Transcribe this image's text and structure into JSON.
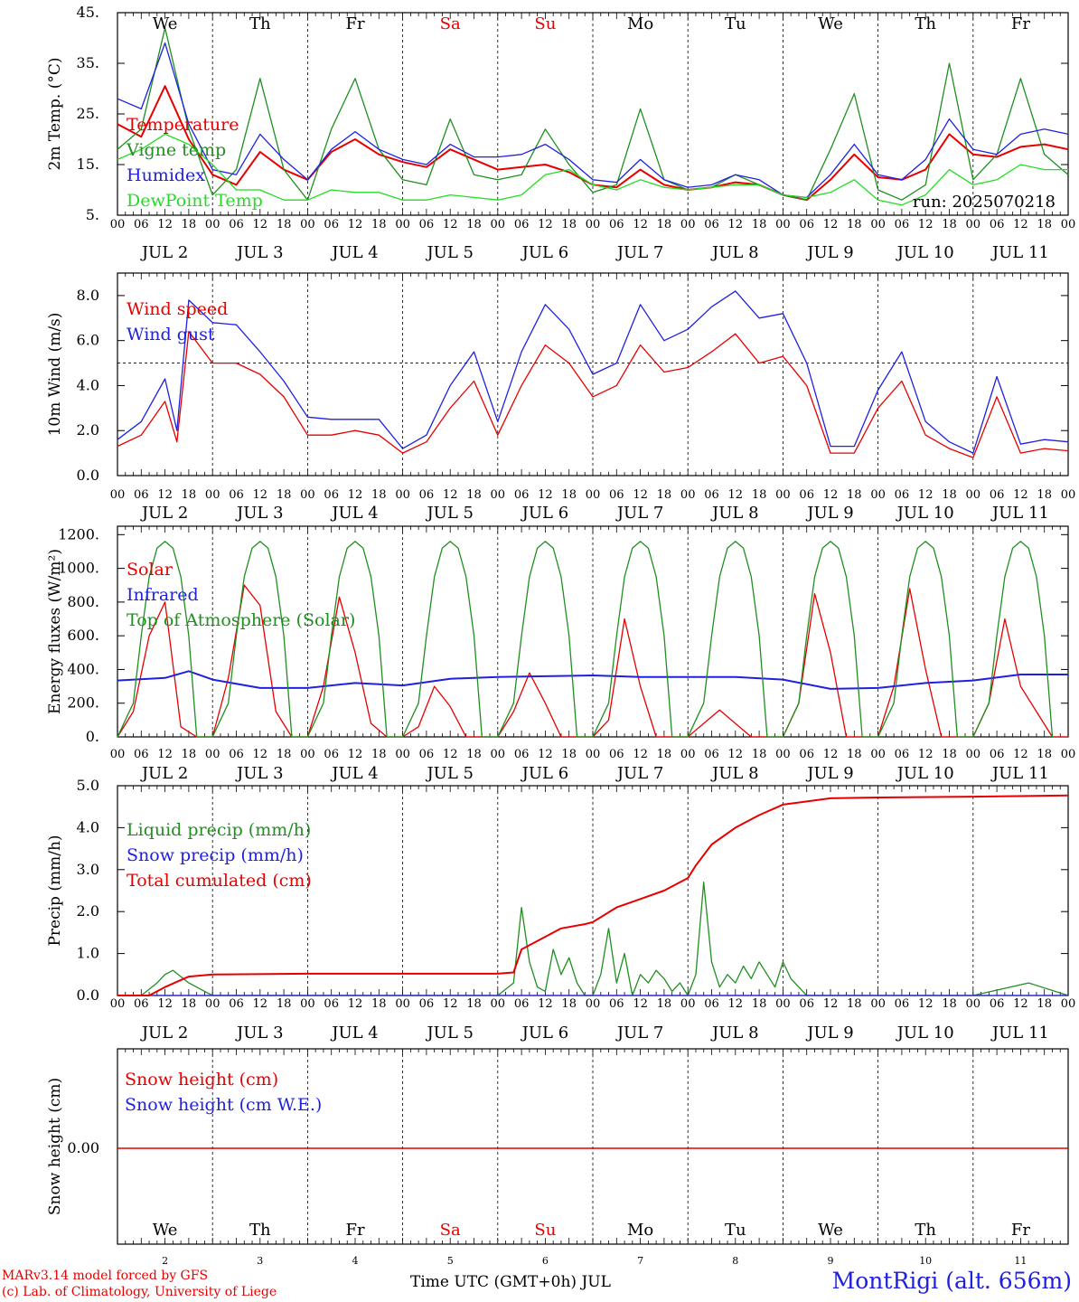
{
  "colors": {
    "red": "#e60000",
    "green": "#1f8f1f",
    "blue": "#2020e0",
    "lightgreen": "#22dd22",
    "black": "#000000"
  },
  "x_axis": {
    "hour_labels": [
      "00",
      "06",
      "12",
      "18"
    ],
    "end_label": "00",
    "date_labels": [
      "JUL  2",
      "JUL  3",
      "JUL  4",
      "JUL  5",
      "JUL  6",
      "JUL  7",
      "JUL  8",
      "JUL  9",
      "JUL 10",
      "JUL 11"
    ],
    "weekdays": [
      "We",
      "Th",
      "Fr",
      "Sa",
      "Su",
      "Mo",
      "Tu",
      "We",
      "Th",
      "Fr"
    ],
    "weekend_flags": [
      false,
      false,
      false,
      true,
      true,
      false,
      false,
      false,
      false,
      false
    ],
    "day_numbers": [
      "2",
      "3",
      "4",
      "5",
      "6",
      "7",
      "8",
      "9",
      "10",
      "11"
    ],
    "title": "Time UTC (GMT+0h) JUL"
  },
  "run_label": "run: 2025070218",
  "footer": {
    "model": "MARv3.14 model forced by GFS",
    "copyright": "(c) Lab. of Climatology, University of Liege",
    "station": "MontRigi (alt. 656m)"
  },
  "chart_data": [
    {
      "type": "line",
      "ylabel": "2m Temp. (°C)",
      "ylim": [
        5,
        45
      ],
      "yticks": [
        5,
        15,
        25,
        35,
        45
      ],
      "ytick_labels": [
        "5.",
        "15.",
        "25.",
        "35.",
        "45."
      ],
      "x_unit": "hours since JUL 2 00 UTC",
      "series": [
        {
          "name": "Temperature",
          "color": "red",
          "x": [
            0,
            6,
            12,
            18,
            24,
            30,
            36,
            42,
            48,
            54,
            60,
            66,
            72,
            78,
            84,
            90,
            96,
            102,
            108,
            114,
            120,
            126,
            132,
            138,
            144,
            150,
            156,
            162,
            168,
            174,
            180,
            186,
            192,
            198,
            204,
            210,
            216,
            222,
            228,
            234,
            240
          ],
          "y": [
            23,
            20.5,
            30.5,
            20,
            13,
            11,
            17.5,
            14,
            12,
            17.5,
            20,
            17,
            15.5,
            14.5,
            18,
            16,
            14,
            14.5,
            15,
            13.5,
            11,
            10.5,
            14,
            11,
            10,
            10.5,
            11.5,
            11,
            9,
            8,
            12,
            17,
            12.5,
            12,
            14,
            21,
            17,
            16.5,
            18.5,
            19,
            18
          ]
        },
        {
          "name": "Vigne temp",
          "color": "green",
          "x": [
            0,
            6,
            12,
            18,
            24,
            30,
            36,
            42,
            48,
            54,
            60,
            66,
            72,
            78,
            84,
            90,
            96,
            102,
            108,
            114,
            120,
            126,
            132,
            138,
            144,
            150,
            156,
            162,
            168,
            174,
            180,
            186,
            192,
            198,
            204,
            210,
            216,
            222,
            228,
            234,
            240
          ],
          "y": [
            18,
            22,
            42,
            22,
            9,
            14,
            32,
            14,
            8,
            22,
            32,
            18,
            12,
            11,
            24,
            13,
            12,
            13,
            22,
            15,
            9.5,
            11,
            26,
            12,
            10,
            10.5,
            13,
            11,
            9,
            8,
            18,
            29,
            10,
            8,
            11,
            35,
            12,
            17,
            32,
            17,
            13
          ]
        },
        {
          "name": "Humidex",
          "color": "blue",
          "x": [
            0,
            6,
            12,
            18,
            24,
            30,
            36,
            42,
            48,
            54,
            60,
            66,
            72,
            78,
            84,
            90,
            96,
            102,
            108,
            114,
            120,
            126,
            132,
            138,
            144,
            150,
            156,
            162,
            168,
            174,
            180,
            186,
            192,
            198,
            204,
            210,
            216,
            222,
            228,
            234,
            240
          ],
          "y": [
            28,
            26,
            39,
            23,
            14,
            13,
            21,
            16,
            12,
            18,
            21.5,
            18,
            16,
            15,
            19,
            16.5,
            16.5,
            17,
            19,
            16,
            12,
            11.5,
            16,
            12,
            10.5,
            11,
            13,
            12,
            9,
            8.5,
            13,
            19,
            13,
            12,
            16,
            24,
            18,
            17,
            21,
            22,
            21
          ]
        },
        {
          "name": "DewPoint Temp",
          "color": "lightgreen",
          "x": [
            0,
            6,
            12,
            18,
            24,
            30,
            36,
            42,
            48,
            54,
            60,
            66,
            72,
            78,
            84,
            90,
            96,
            102,
            108,
            114,
            120,
            126,
            132,
            138,
            144,
            150,
            156,
            162,
            168,
            174,
            180,
            186,
            192,
            198,
            204,
            210,
            216,
            222,
            228,
            234,
            240
          ],
          "y": [
            16,
            18,
            21,
            19,
            15,
            10,
            10,
            8,
            8,
            10,
            9.5,
            9.5,
            8,
            8,
            9,
            8.5,
            8,
            9,
            13,
            14,
            11,
            10,
            12,
            10.5,
            10,
            10.5,
            11,
            11,
            9,
            8.5,
            9.5,
            12,
            8,
            7,
            9,
            14,
            11,
            12,
            15,
            14,
            14
          ]
        }
      ]
    },
    {
      "type": "line",
      "ylabel": "10m Wind (m/s)",
      "ylim": [
        0,
        9
      ],
      "yticks": [
        0,
        2,
        4,
        6,
        8
      ],
      "ytick_labels": [
        "0.0",
        "2.0",
        "4.0",
        "6.0",
        "8.0"
      ],
      "hline": 5,
      "series": [
        {
          "name": "Wind speed",
          "color": "red",
          "x": [
            0,
            6,
            12,
            15,
            18,
            24,
            30,
            36,
            42,
            48,
            54,
            60,
            66,
            72,
            78,
            84,
            90,
            96,
            102,
            108,
            114,
            120,
            126,
            132,
            138,
            144,
            150,
            156,
            162,
            168,
            174,
            180,
            186,
            192,
            198,
            204,
            210,
            216,
            222,
            228,
            234,
            240
          ],
          "y": [
            1.3,
            1.8,
            3.3,
            1.5,
            6.4,
            5.0,
            5.0,
            4.5,
            3.5,
            1.8,
            1.8,
            2.0,
            1.8,
            1.0,
            1.5,
            3.0,
            4.2,
            1.8,
            4.0,
            5.8,
            5.0,
            3.5,
            4.0,
            5.8,
            4.6,
            4.8,
            5.5,
            6.3,
            5.0,
            5.3,
            4.0,
            1.0,
            1.0,
            3.0,
            4.2,
            1.8,
            1.2,
            0.8,
            3.5,
            1.0,
            1.2,
            1.1
          ]
        },
        {
          "name": "Wind gust",
          "color": "blue",
          "x": [
            0,
            6,
            12,
            15,
            18,
            24,
            30,
            36,
            42,
            48,
            54,
            60,
            66,
            72,
            78,
            84,
            90,
            96,
            102,
            108,
            114,
            120,
            126,
            132,
            138,
            144,
            150,
            156,
            162,
            168,
            174,
            180,
            186,
            192,
            198,
            204,
            210,
            216,
            222,
            228,
            234,
            240
          ],
          "y": [
            1.6,
            2.4,
            4.3,
            2.0,
            7.8,
            6.8,
            6.7,
            5.5,
            4.2,
            2.6,
            2.5,
            2.5,
            2.5,
            1.2,
            1.8,
            4.0,
            5.5,
            2.4,
            5.5,
            7.6,
            6.5,
            4.5,
            5.0,
            7.6,
            6.0,
            6.5,
            7.5,
            8.2,
            7.0,
            7.2,
            5.0,
            1.3,
            1.3,
            3.8,
            5.5,
            2.4,
            1.5,
            1.0,
            4.4,
            1.4,
            1.6,
            1.5
          ]
        }
      ]
    },
    {
      "type": "line",
      "ylabel": "Energy fluxes (W/m²)",
      "ylim": [
        0,
        1250
      ],
      "yticks": [
        0,
        200,
        400,
        600,
        800,
        1000,
        1200
      ],
      "ytick_labels": [
        "0.",
        "200.",
        "400.",
        "600.",
        "800.",
        "1000.",
        "1200."
      ],
      "series": [
        {
          "name": "Solar",
          "color": "red",
          "x": [
            0,
            4,
            8,
            12,
            16,
            20,
            24,
            28,
            32,
            36,
            40,
            44,
            48,
            52,
            56,
            60,
            64,
            68,
            72,
            76,
            80,
            84,
            88,
            92,
            96,
            100,
            104,
            108,
            112,
            116,
            120,
            124,
            128,
            132,
            136,
            140,
            144,
            148,
            152,
            156,
            160,
            164,
            168,
            172,
            176,
            180,
            184,
            188,
            192,
            196,
            200,
            204,
            208,
            212,
            216,
            220,
            224,
            228,
            232,
            236,
            240
          ],
          "y": [
            0,
            150,
            600,
            800,
            60,
            0,
            0,
            350,
            900,
            780,
            150,
            0,
            0,
            300,
            830,
            500,
            80,
            0,
            0,
            60,
            300,
            180,
            0,
            0,
            0,
            150,
            380,
            200,
            0,
            0,
            0,
            100,
            700,
            300,
            0,
            0,
            0,
            80,
            160,
            80,
            0,
            0,
            0,
            200,
            850,
            500,
            0,
            0,
            0,
            300,
            880,
            400,
            0,
            0,
            0,
            200,
            700,
            300,
            150,
            0,
            0
          ]
        },
        {
          "name": "Infrared",
          "color": "blue",
          "x": [
            0,
            12,
            18,
            24,
            36,
            48,
            60,
            72,
            84,
            96,
            108,
            120,
            132,
            144,
            156,
            168,
            180,
            192,
            204,
            216,
            228,
            240
          ],
          "y": [
            335,
            350,
            390,
            340,
            290,
            290,
            320,
            305,
            345,
            355,
            360,
            365,
            355,
            355,
            355,
            340,
            285,
            290,
            320,
            335,
            370,
            370
          ]
        },
        {
          "name": "Top of Atmosphere (Solar)",
          "color": "green",
          "x": [
            0,
            4,
            6,
            8,
            10,
            12,
            14,
            16,
            18,
            20
          ],
          "y": [
            0,
            200,
            600,
            950,
            1120,
            1160,
            1120,
            950,
            600,
            0
          ],
          "repeat_every": 24
        }
      ]
    },
    {
      "type": "line",
      "ylabel": "Precip (mm/h)",
      "ylim": [
        0,
        5
      ],
      "yticks": [
        0,
        1,
        2,
        3,
        4,
        5
      ],
      "ytick_labels": [
        "0.0",
        "1.0",
        "2.0",
        "3.0",
        "4.0",
        "5.0"
      ],
      "series": [
        {
          "name": "Liquid precip (mm/h)",
          "color": "green",
          "x": [
            0,
            6,
            10,
            12,
            14,
            18,
            22,
            24,
            48,
            96,
            100,
            102,
            104,
            106,
            108,
            110,
            112,
            114,
            116,
            118,
            120,
            122,
            124,
            126,
            128,
            130,
            132,
            134,
            136,
            138,
            140,
            142,
            144,
            146,
            148,
            150,
            152,
            154,
            156,
            158,
            160,
            162,
            164,
            166,
            168,
            170,
            172,
            174,
            180,
            192,
            216,
            230,
            240
          ],
          "y": [
            0,
            0,
            0.3,
            0.5,
            0.6,
            0.3,
            0.1,
            0,
            0,
            0,
            0.3,
            2.1,
            0.8,
            0.2,
            0.1,
            1.1,
            0.5,
            0.9,
            0.3,
            0,
            0,
            0.5,
            1.6,
            0.3,
            1.0,
            0,
            0.5,
            0.3,
            0.6,
            0.4,
            0.1,
            0.3,
            0,
            0.5,
            2.7,
            0.8,
            0.2,
            0.5,
            0.3,
            0.7,
            0.4,
            0.8,
            0.5,
            0.2,
            0.8,
            0.4,
            0.2,
            0,
            0,
            0,
            0,
            0.3,
            0
          ]
        },
        {
          "name": "Snow precip (mm/h)",
          "color": "blue",
          "x": [
            0,
            240
          ],
          "y": [
            0,
            0
          ]
        },
        {
          "name": "Total cumulated (cm)",
          "color": "red",
          "x": [
            0,
            8,
            12,
            18,
            24,
            48,
            72,
            96,
            100,
            102,
            106,
            112,
            118,
            120,
            126,
            132,
            138,
            144,
            146,
            150,
            156,
            162,
            168,
            180,
            192,
            216,
            240
          ],
          "y": [
            0,
            0,
            0.2,
            0.45,
            0.5,
            0.52,
            0.52,
            0.52,
            0.55,
            1.1,
            1.3,
            1.6,
            1.7,
            1.75,
            2.1,
            2.3,
            2.5,
            2.8,
            3.1,
            3.6,
            4.0,
            4.3,
            4.55,
            4.7,
            4.72,
            4.74,
            4.77
          ]
        }
      ]
    },
    {
      "type": "line",
      "ylabel": "Snow height (cm)",
      "ytick_labels": [
        "0.00"
      ],
      "series": [
        {
          "name": "Snow height (cm)",
          "color": "red",
          "x": [
            0,
            240
          ],
          "y": [
            0,
            0
          ]
        },
        {
          "name": "Snow height (cm W.E.)",
          "color": "blue",
          "x": [
            0,
            240
          ],
          "y": [
            0,
            0
          ]
        }
      ]
    }
  ]
}
